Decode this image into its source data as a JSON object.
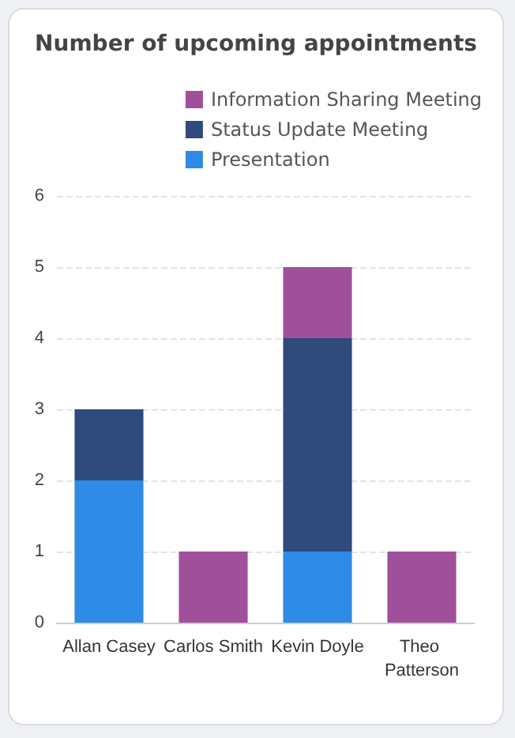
{
  "chart_data": {
    "type": "bar",
    "title": "Number of upcoming appointments",
    "categories": [
      "Allan Casey",
      "Carlos Smith",
      "Kevin Doyle",
      "Theo Patterson"
    ],
    "stacked": true,
    "series": [
      {
        "name": "Presentation",
        "color": "#2e8be6",
        "values": [
          2,
          null,
          1,
          null
        ]
      },
      {
        "name": "Status Update Meeting",
        "color": "#2f4b7c",
        "values": [
          1,
          null,
          3,
          null
        ]
      },
      {
        "name": "Information Sharing Meeting",
        "color": "#a0509a",
        "values": [
          null,
          1,
          1,
          1
        ]
      }
    ],
    "ylim": [
      0,
      6
    ],
    "yticks": [
      0,
      1,
      2,
      3,
      4,
      5,
      6
    ],
    "grid": "y",
    "legend": "top right"
  }
}
